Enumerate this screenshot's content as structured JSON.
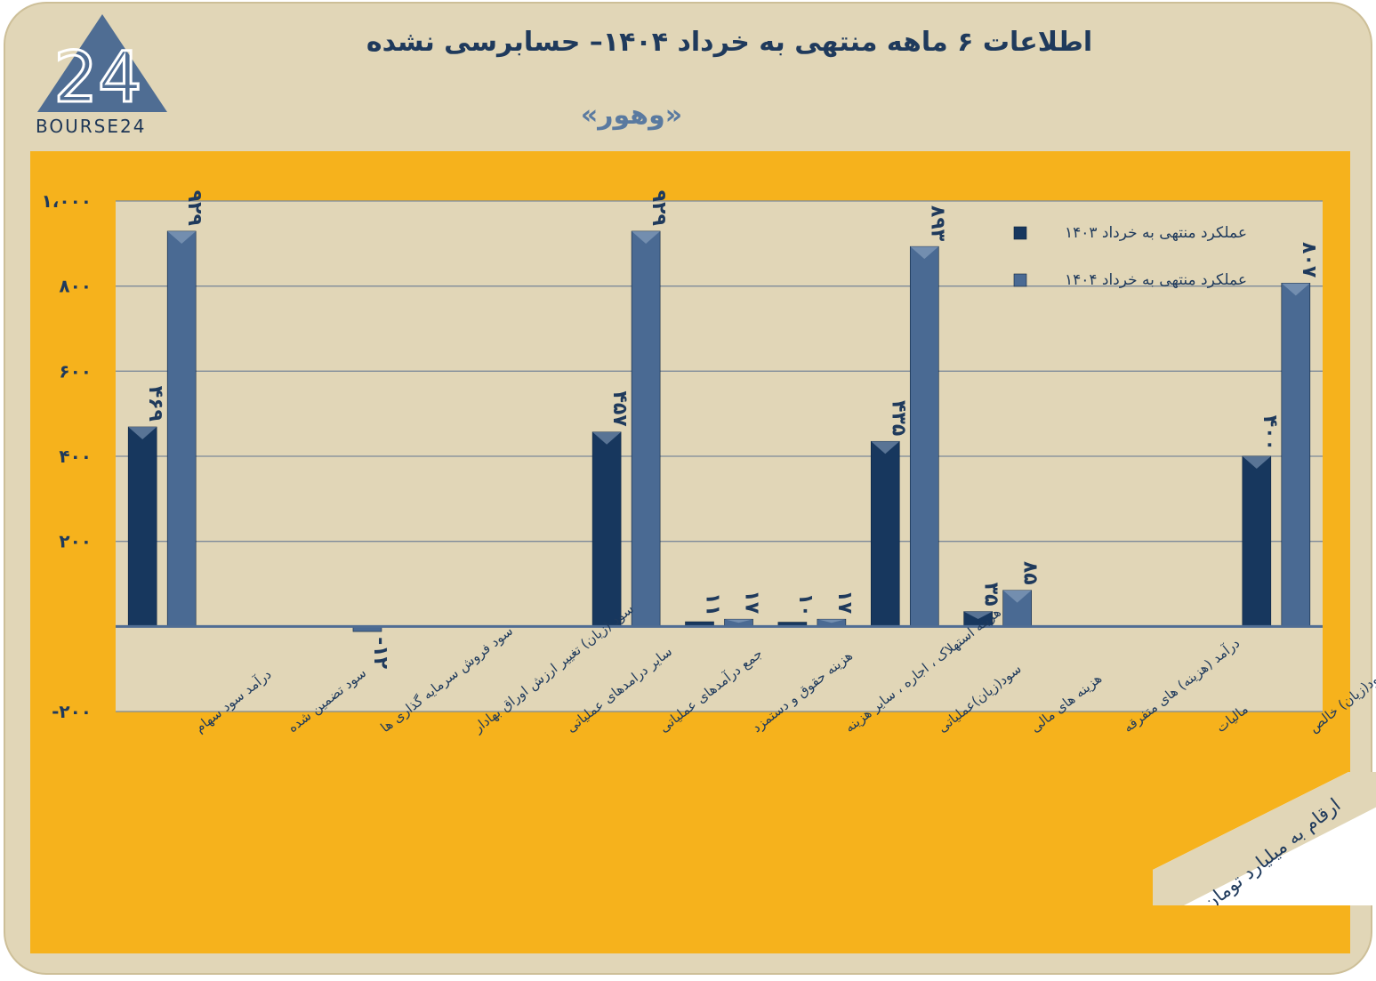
{
  "header": {
    "title": "اطلاعات ۶ ماهه منتهی به خرداد ۱۴۰۴– حسابرسی نشده",
    "subtitle": "«وهور»",
    "logo_text": "BOURSE24",
    "logo_mark": "24"
  },
  "unit_note": "ارقام به میلیارد تومان",
  "colors": {
    "card_bg": "#e1d6b7",
    "panel_bg": "#f6b21c",
    "plot_bg": "#e1d6b7",
    "series_1403": "#17375e",
    "series_1404": "#4a6a93",
    "title": "#1f3a5c"
  },
  "chart_data": {
    "type": "bar",
    "ylim": [
      -200,
      1000
    ],
    "yticks": [
      -200,
      200,
      400,
      600,
      800,
      1000
    ],
    "ytick_labels": [
      "-۲۰۰",
      "۲۰۰",
      "۴۰۰",
      "۶۰۰",
      "۸۰۰",
      "۱،۰۰۰"
    ],
    "grid": true,
    "legend_position": "top-right",
    "categories": [
      "درآمد سود سهام",
      "سود تضمین شده",
      "سود فروش سرمایه گذاری ها",
      "سود (زیان) تغییر ارزش اوراق بهادار",
      "سایر درامدهای عملیاتی",
      "جمع درآمدهای عملیاتی",
      "هزینه حقوق و دستمزد",
      "هزینه استهلاک ، اجاره ، سایر هزینه",
      "سود(زیان)عملیاتی",
      "هزینه های مالی",
      "درآمد (هزینه) های متفرقه",
      "مالیات",
      "سود(زیان) خالص"
    ],
    "series": [
      {
        "name": "عملکرد منتهی به خرداد ۱۴۰۳",
        "values": [
          469,
          0,
          0,
          0,
          0,
          457,
          11,
          10,
          435,
          35,
          0,
          0,
          400
        ],
        "labels": [
          "۴۶۹",
          "",
          "",
          "",
          "",
          "۴۵۷",
          "۱۱",
          "۱۰",
          "۴۳۵",
          "۳۵",
          "",
          "",
          "۴۰۰"
        ]
      },
      {
        "name": "عملکرد منتهی به خرداد ۱۴۰۴",
        "values": [
          929,
          0,
          -12,
          0,
          0,
          929,
          17,
          17,
          893,
          85,
          0,
          0,
          807
        ],
        "labels": [
          "۹۲۹",
          "",
          "-۱۲",
          "",
          "",
          "۹۲۹",
          "۱۷",
          "۱۷",
          "۸۹۳",
          "۸۵",
          "",
          "",
          "۸۰۷"
        ]
      }
    ]
  }
}
